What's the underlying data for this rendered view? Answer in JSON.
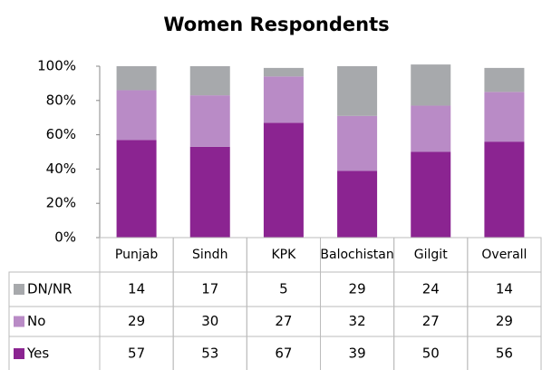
{
  "chart_data": {
    "type": "stacked_bar",
    "title": "Women Respondents",
    "categories": [
      "Punjab",
      "Sindh",
      "KPK",
      "Balochistan",
      "Gilgit",
      "Overall"
    ],
    "series": [
      {
        "name": "Yes",
        "color": "#8b2491",
        "values": [
          57,
          53,
          67,
          39,
          50,
          56
        ]
      },
      {
        "name": "No",
        "color": "#b98bc6",
        "values": [
          29,
          30,
          27,
          32,
          27,
          29
        ]
      },
      {
        "name": "DN/NR",
        "color": "#a7a9ac",
        "values": [
          14,
          17,
          5,
          29,
          24,
          14
        ]
      }
    ],
    "ylim": [
      0,
      100
    ],
    "yticks": [
      {
        "value": 0,
        "label": "0%"
      },
      {
        "value": 20,
        "label": "20%"
      },
      {
        "value": 40,
        "label": "40%"
      },
      {
        "value": 60,
        "label": "60%"
      },
      {
        "value": 80,
        "label": "80%"
      },
      {
        "value": 100,
        "label": "100%"
      }
    ],
    "grid": false
  }
}
